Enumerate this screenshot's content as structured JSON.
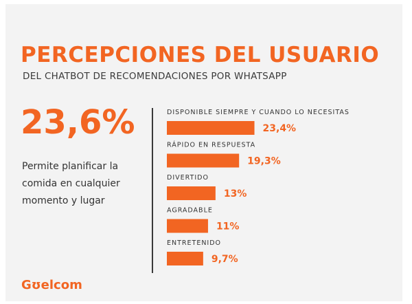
{
  "colors": {
    "accent": "#f26522",
    "text": "#333333",
    "background": "#f3f3f3"
  },
  "header": {
    "title": "PERCEPCIONES DEL USUARIO",
    "subtitle": "DEL CHATBOT DE RECOMENDACIONES POR WHATSAPP"
  },
  "highlight": {
    "value": "23,6%",
    "description": "Permite planificar la comida en cualquier momento y lugar"
  },
  "chart_data": {
    "type": "bar",
    "orientation": "horizontal",
    "categories": [
      "DISPONIBLE SIEMPRE Y CUANDO LO NECESITAS",
      "RÁPIDO EN RESPUESTA",
      "DIVERTIDO",
      "AGRADABLE",
      "ENTRETENIDO"
    ],
    "values": [
      23.4,
      19.3,
      13,
      11,
      9.7
    ],
    "value_labels": [
      "23,4%",
      "19,3%",
      "13%",
      "11%",
      "9,7%"
    ],
    "unit": "%",
    "grid": false,
    "legend": "none"
  },
  "footer": {
    "logo_text": "Gʊelcom"
  }
}
